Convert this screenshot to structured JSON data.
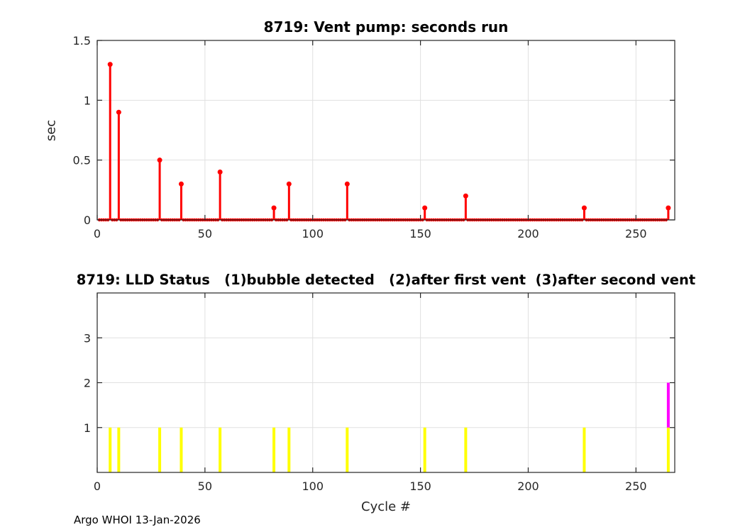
{
  "figure": {
    "footer": "Argo WHOI 13-Jan-2026",
    "background": "#ffffff",
    "axis_color": "#262626",
    "grid_color": "#e0e0e0",
    "title_color": "#000000"
  },
  "chart_data": [
    {
      "type": "stem",
      "title": "8719: Vent pump: seconds run",
      "ylabel": "sec",
      "xlabel": "",
      "xlim": [
        0,
        268
      ],
      "ylim": [
        0,
        1.5
      ],
      "xticks": [
        0,
        50,
        100,
        150,
        200,
        250
      ],
      "yticks": [
        0,
        0.5,
        1,
        1.5
      ],
      "grid": true,
      "series_color": "#ff0000",
      "zero_baseline": {
        "first_cycle": 1,
        "last_cycle": 265,
        "value": 0
      },
      "nonzero_points": [
        {
          "cycle": 6,
          "seconds": 1.3
        },
        {
          "cycle": 10,
          "seconds": 0.9
        },
        {
          "cycle": 29,
          "seconds": 0.5
        },
        {
          "cycle": 39,
          "seconds": 0.3
        },
        {
          "cycle": 57,
          "seconds": 0.4
        },
        {
          "cycle": 82,
          "seconds": 0.1
        },
        {
          "cycle": 89,
          "seconds": 0.3
        },
        {
          "cycle": 116,
          "seconds": 0.3
        },
        {
          "cycle": 152,
          "seconds": 0.1
        },
        {
          "cycle": 171,
          "seconds": 0.2
        },
        {
          "cycle": 226,
          "seconds": 0.1
        },
        {
          "cycle": 265,
          "seconds": 0.1
        }
      ]
    },
    {
      "type": "event_bars",
      "title": "8719: LLD Status   (1)bubble detected   (2)after first vent  (3)after second vent",
      "ylabel": "",
      "xlabel": "Cycle #",
      "xlim": [
        0,
        268
      ],
      "ylim": [
        0,
        4
      ],
      "xticks": [
        0,
        50,
        100,
        150,
        200,
        250
      ],
      "yticks": [
        1,
        2,
        3
      ],
      "grid": true,
      "series": [
        {
          "name": "status-1-bubble-detected",
          "color": "#ffff00",
          "y_from": 0,
          "y_to": 1,
          "cycles": [
            6,
            10,
            29,
            39,
            57,
            82,
            89,
            116,
            152,
            171,
            226,
            265
          ]
        },
        {
          "name": "status-2-after-first-vent",
          "color": "#ff00ff",
          "y_from": 1,
          "y_to": 2,
          "cycles": [
            265
          ]
        }
      ]
    }
  ]
}
